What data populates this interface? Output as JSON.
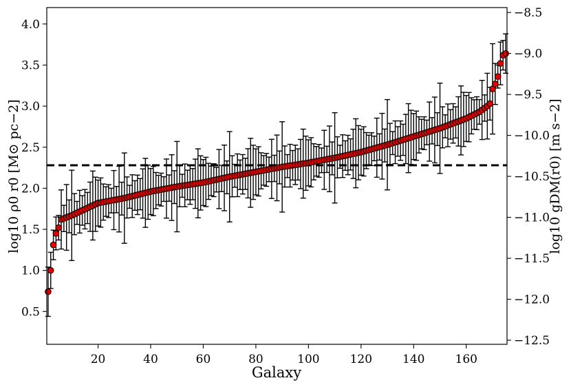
{
  "chart_data": {
    "type": "scatter",
    "title": "",
    "xlabel": "Galaxy",
    "ylabel": "log10 ρ0 r0 [M⊙ pc−2]",
    "ylabel_right": "log10 gDM(r0) [m s−2]",
    "xlim": [
      0.5,
      175.5
    ],
    "ylim": [
      0.1,
      4.2
    ],
    "ylim_right": [
      -12.55,
      -8.44
    ],
    "x_ticks": [
      20,
      40,
      60,
      80,
      100,
      120,
      140,
      160
    ],
    "y_ticks": [
      0.5,
      1.0,
      1.5,
      2.0,
      2.5,
      3.0,
      3.5,
      4.0
    ],
    "y_ticks_right": [
      -12.5,
      -12.0,
      -11.5,
      -11.0,
      -10.5,
      -10.0,
      -9.5,
      -9.0,
      -8.5
    ],
    "hline": {
      "y": 2.28,
      "style": "dashed"
    },
    "marker_color": "#e00000",
    "errorbar_color": "#000000",
    "series": [
      {
        "n_points": 175,
        "y_anchors": [
          [
            1,
            0.74
          ],
          [
            2,
            1.0
          ],
          [
            3,
            1.31
          ],
          [
            4,
            1.45
          ],
          [
            5,
            1.52
          ],
          [
            6,
            1.62
          ],
          [
            10,
            1.67
          ],
          [
            20,
            1.82
          ],
          [
            30,
            1.88
          ],
          [
            40,
            1.96
          ],
          [
            50,
            2.02
          ],
          [
            60,
            2.07
          ],
          [
            70,
            2.14
          ],
          [
            80,
            2.2
          ],
          [
            90,
            2.26
          ],
          [
            100,
            2.31
          ],
          [
            110,
            2.37
          ],
          [
            120,
            2.44
          ],
          [
            130,
            2.53
          ],
          [
            140,
            2.63
          ],
          [
            150,
            2.73
          ],
          [
            160,
            2.85
          ],
          [
            165,
            2.93
          ],
          [
            168,
            3.0
          ],
          [
            169,
            3.03
          ],
          [
            170,
            3.21
          ],
          [
            171,
            3.27
          ],
          [
            172,
            3.36
          ],
          [
            173,
            3.52
          ],
          [
            174,
            3.62
          ],
          [
            175,
            3.64
          ]
        ],
        "error_pattern": [
          0.28,
          0.18,
          0.36,
          0.2,
          0.14,
          0.24,
          0.42,
          0.3,
          0.2,
          0.16,
          0.55,
          0.26,
          0.19,
          0.33,
          0.22,
          0.15,
          0.4,
          0.25,
          0.18,
          0.3
        ]
      }
    ]
  }
}
